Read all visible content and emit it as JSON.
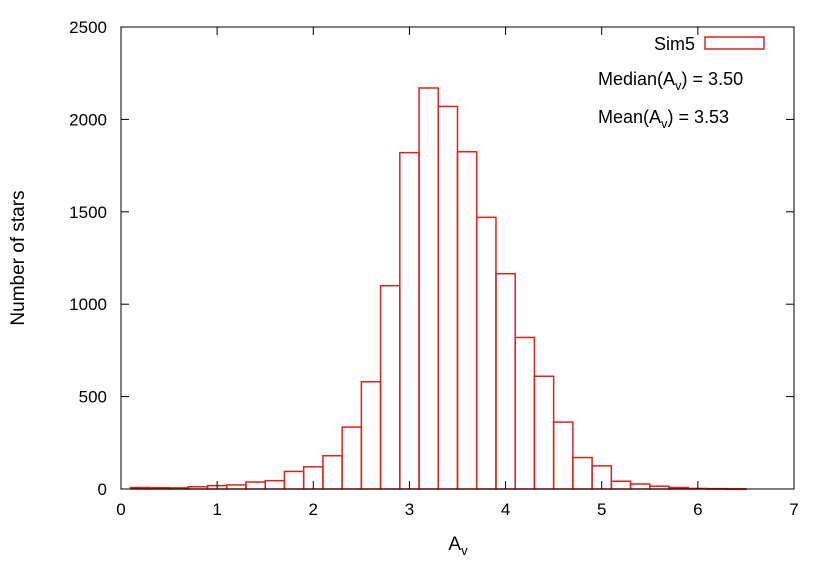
{
  "chart_data": {
    "type": "bar",
    "xlabel": {
      "base": "A",
      "sub": "v"
    },
    "ylabel": "Number of stars",
    "xlim": [
      0,
      7
    ],
    "ylim": [
      0,
      2500
    ],
    "xticks": [
      "0",
      "1",
      "2",
      "3",
      "4",
      "5",
      "6",
      "7"
    ],
    "yticks": [
      "0",
      "500",
      "1000",
      "1500",
      "2000",
      "2500"
    ],
    "bin_width": 0.2,
    "bin_starts": [
      0.1,
      0.3,
      0.5,
      0.7,
      0.9,
      1.1,
      1.3,
      1.5,
      1.7,
      1.9,
      2.1,
      2.3,
      2.5,
      2.7,
      2.9,
      3.1,
      3.3,
      3.5,
      3.7,
      3.9,
      4.1,
      4.3,
      4.5,
      4.7,
      4.9,
      5.1,
      5.3,
      5.5,
      5.7,
      5.9,
      6.1,
      6.3
    ],
    "values": [
      8,
      7,
      6,
      12,
      18,
      22,
      38,
      45,
      95,
      120,
      180,
      335,
      580,
      1100,
      1820,
      2170,
      2070,
      1825,
      1470,
      1165,
      820,
      610,
      362,
      170,
      125,
      42,
      27,
      15,
      8,
      3,
      2,
      1
    ],
    "series": [
      {
        "name": "Sim5",
        "color": "#e0221b"
      }
    ],
    "annotations": {
      "median": {
        "prefix": "Median(A",
        "sub": "v",
        "suffix": ") = 3.50"
      },
      "mean": {
        "prefix": "Mean(A",
        "sub": "v",
        "suffix": ") = 3.53"
      }
    },
    "legend_position": "top-right",
    "grid": false
  }
}
